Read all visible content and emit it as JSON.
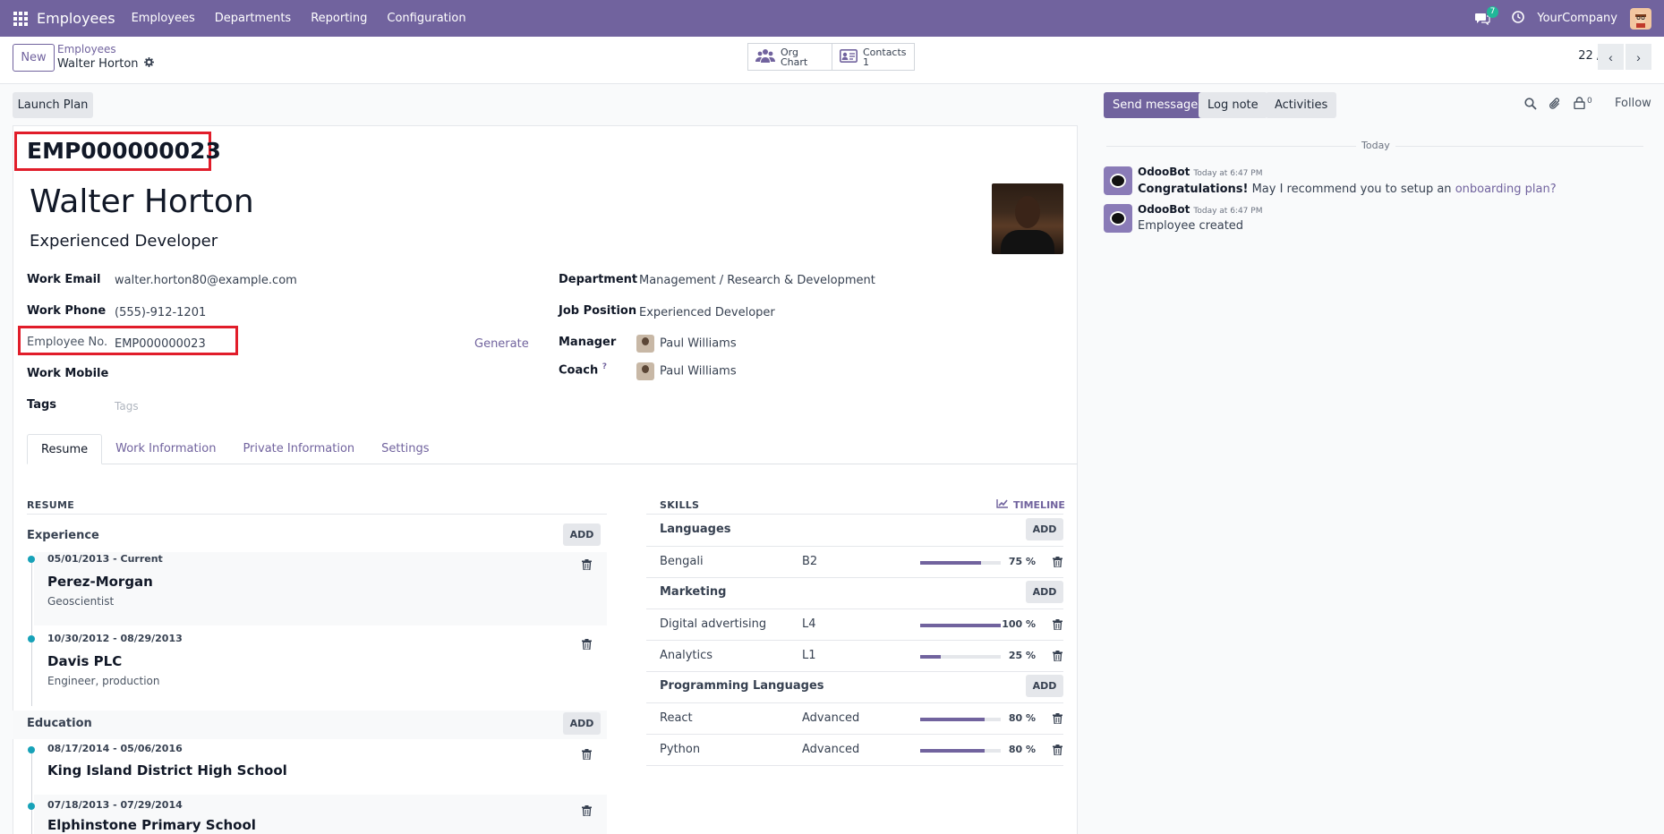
{
  "navbar": {
    "app_name": "Employees",
    "menu": [
      "Employees",
      "Departments",
      "Reporting",
      "Configuration"
    ],
    "chat_badge": "7",
    "company": "YourCompany"
  },
  "control": {
    "new_label": "New",
    "breadcrumb_parent": "Employees",
    "breadcrumb_current": "Walter Horton",
    "org_chart_label": "Org Chart",
    "contacts_label": "Contacts",
    "contacts_count": "1",
    "pager": "22 / 22"
  },
  "launch_plan_label": "Launch Plan",
  "employee": {
    "code": "EMP000000023",
    "name": "Walter Horton",
    "job_title": "Experienced Developer"
  },
  "fields": {
    "work_email_label": "Work Email",
    "work_email": "walter.horton80@example.com",
    "work_phone_label": "Work Phone",
    "work_phone": "(555)-912-1201",
    "employee_no_label": "Employee No.",
    "employee_no": "EMP000000023",
    "generate_label": "Generate",
    "work_mobile_label": "Work Mobile",
    "tags_label": "Tags",
    "tags_placeholder": "Tags",
    "department_label": "Department",
    "department": "Management / Research & Development",
    "job_position_label": "Job Position",
    "job_position": "Experienced Developer",
    "manager_label": "Manager",
    "manager": "Paul Williams",
    "coach_label": "Coach",
    "coach_help": "?",
    "coach": "Paul Williams"
  },
  "tabs": [
    "Resume",
    "Work Information",
    "Private Information",
    "Settings"
  ],
  "resume": {
    "title": "RESUME",
    "add_label": "ADD",
    "experience_title": "Experience",
    "education_title": "Education",
    "experience": [
      {
        "date": "05/01/2013 - Current",
        "name": "Perez-Morgan",
        "desc": "Geoscientist"
      },
      {
        "date": "10/30/2012 - 08/29/2013",
        "name": "Davis PLC",
        "desc": "Engineer, production"
      }
    ],
    "education": [
      {
        "date": "08/17/2014 - 05/06/2016",
        "name": "King Island District High School"
      },
      {
        "date": "07/18/2013 - 07/29/2014",
        "name": "Elphinstone Primary School"
      }
    ]
  },
  "skills": {
    "title": "SKILLS",
    "timeline_label": "TIMELINE",
    "add_label": "ADD",
    "groups": [
      {
        "name": "Languages",
        "items": [
          {
            "name": "Bengali",
            "level": "B2",
            "pct": 75,
            "pct_label": "75 %"
          }
        ]
      },
      {
        "name": "Marketing",
        "items": [
          {
            "name": "Digital advertising",
            "level": "L4",
            "pct": 100,
            "pct_label": "100 %"
          },
          {
            "name": "Analytics",
            "level": "L1",
            "pct": 25,
            "pct_label": "25 %"
          }
        ]
      },
      {
        "name": "Programming Languages",
        "items": [
          {
            "name": "React",
            "level": "Advanced",
            "pct": 80,
            "pct_label": "80 %"
          },
          {
            "name": "Python",
            "level": "Advanced",
            "pct": 80,
            "pct_label": "80 %"
          }
        ]
      }
    ]
  },
  "chatter": {
    "send_message": "Send message",
    "log_note": "Log note",
    "activities": "Activities",
    "followers_count": "0",
    "follow": "Follow",
    "today": "Today",
    "messages": [
      {
        "author": "OdooBot",
        "time": "Today at 6:47 PM",
        "body_bold": "Congratulations!",
        "body": " May I recommend you to setup an ",
        "link": "onboarding plan?"
      },
      {
        "author": "OdooBot",
        "time": "Today at 6:47 PM",
        "body": "Employee created"
      }
    ]
  },
  "colors": {
    "brand": "#71639e",
    "highlight": "#e11d2a",
    "timeline_dot": "#17a2b8"
  }
}
